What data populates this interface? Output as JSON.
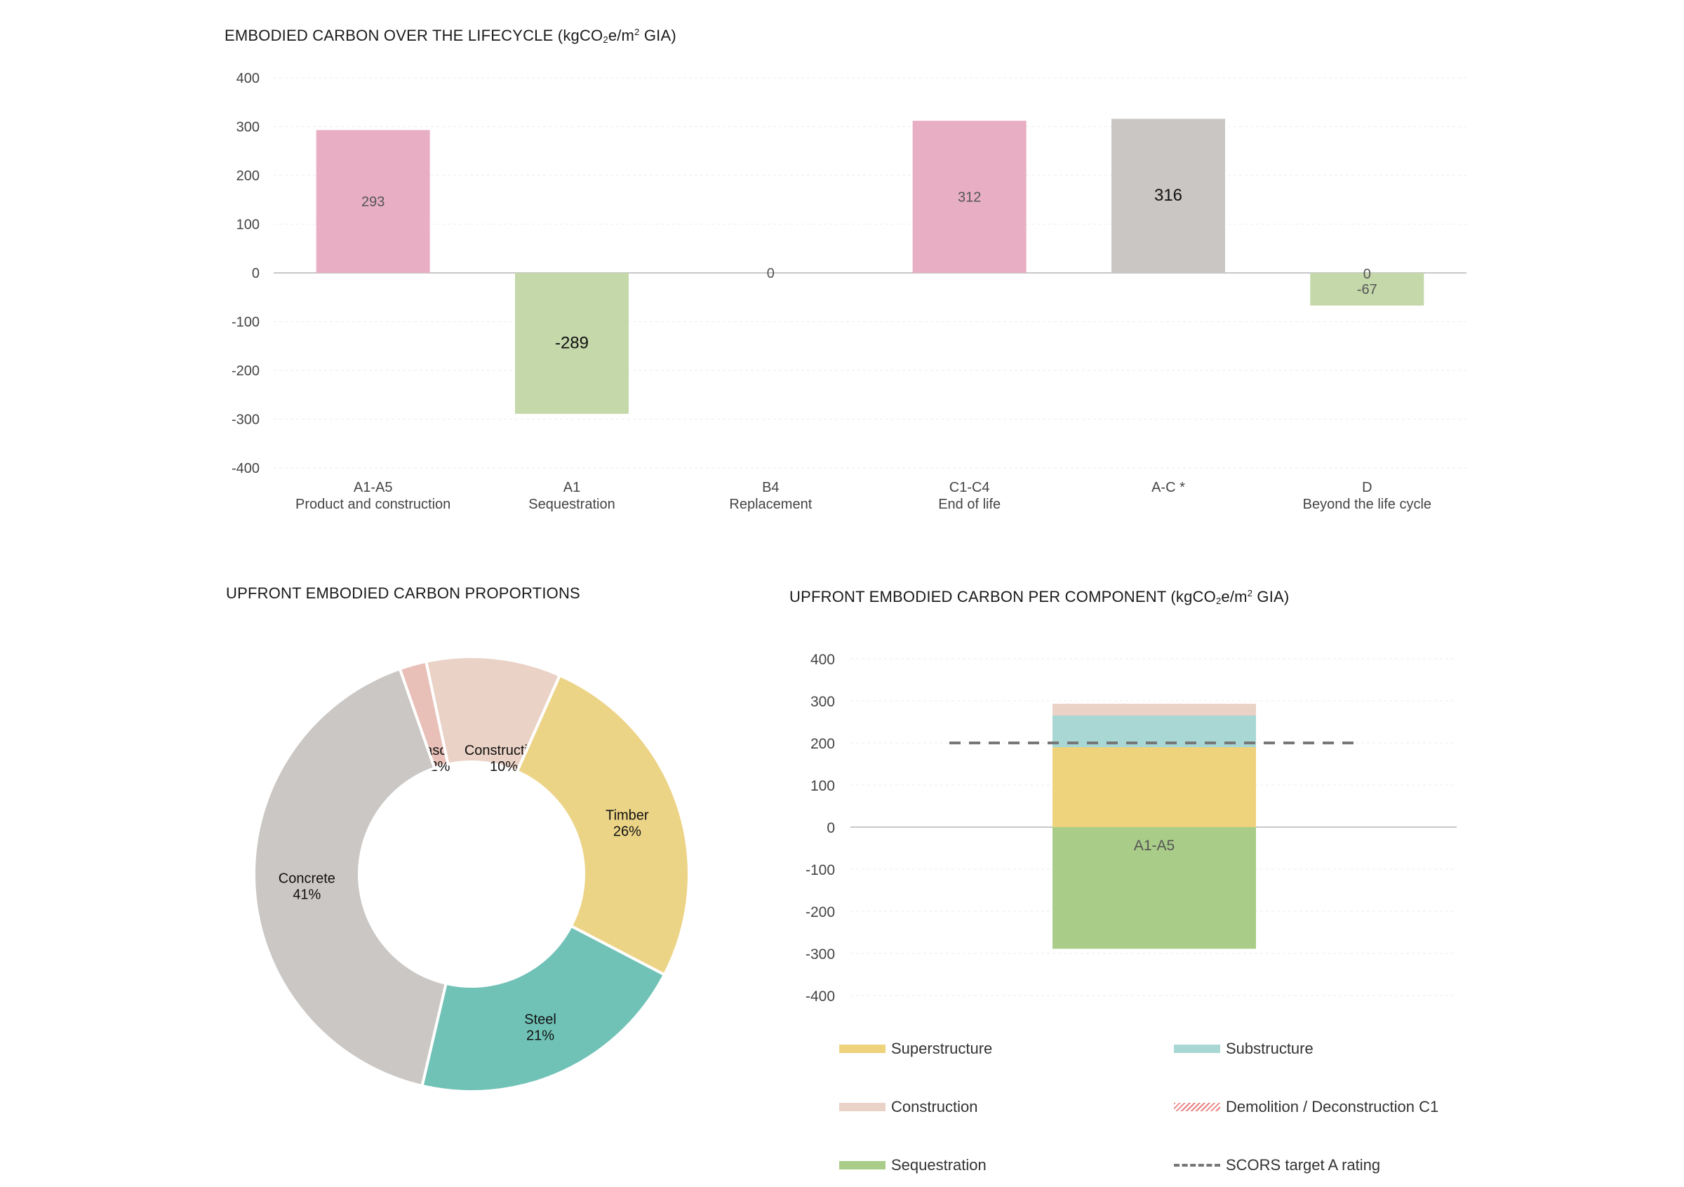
{
  "titles": {
    "lifecycle": {
      "pre": "EMBODIED CARBON OVER THE LIFECYCLE (kgCO",
      "sub": "2",
      "mid": "e/m",
      "sup": "2",
      "post": " GIA)"
    },
    "proportions": "UPFRONT EMBODIED CARBON PROPORTIONS",
    "component": {
      "pre": "UPFRONT EMBODIED CARBON PER COMPONENT (kgCO",
      "sub": "2",
      "mid": "e/m",
      "sup": "2",
      "post": " GIA)"
    }
  },
  "chart_data": [
    {
      "type": "bar",
      "title": "EMBODIED CARBON OVER THE LIFECYCLE (kgCO2e/m2 GIA)",
      "categories": [
        [
          "A1-A5",
          "Product and construction"
        ],
        [
          "A1",
          "Sequestration"
        ],
        [
          "B4",
          "Replacement"
        ],
        [
          "C1-C4",
          "End of life"
        ],
        [
          "A-C *",
          ""
        ],
        [
          "D",
          "Beyond the life cycle"
        ]
      ],
      "values": [
        293,
        -289,
        0,
        312,
        316,
        -67
      ],
      "data_labels": [
        [
          "293"
        ],
        [
          "-289"
        ],
        [
          "0"
        ],
        [
          "312"
        ],
        [
          "316"
        ],
        [
          "0",
          "-67"
        ]
      ],
      "colors": [
        "#e8aec3",
        "#c5d8aa",
        "#e8aec3",
        "#e8aec3",
        "#c9c6c3",
        "#c5d8aa"
      ],
      "yticks": [
        400,
        300,
        200,
        100,
        0,
        -100,
        -200,
        -300,
        -400
      ],
      "ylim": [
        -400,
        400
      ],
      "grid": true
    },
    {
      "type": "pie",
      "title": "UPFRONT EMBODIED CARBON PROPORTIONS",
      "donut": true,
      "slices": [
        {
          "name": "Masonry",
          "value": 2,
          "label": "2%",
          "color": "#e8c0b8"
        },
        {
          "name": "Construction",
          "value": 10,
          "label": "10%",
          "color": "#ead2c6"
        },
        {
          "name": "Timber",
          "value": 26,
          "label": "26%",
          "color": "#ecd487"
        },
        {
          "name": "Steel",
          "value": 21,
          "label": "21%",
          "color": "#70c2b6"
        },
        {
          "name": "Concrete",
          "value": 41,
          "label": "41%",
          "color": "#cac7c4"
        }
      ]
    },
    {
      "type": "bar",
      "stacked": true,
      "title": "UPFRONT EMBODIED CARBON PER COMPONENT (kgCO2e/m2 GIA)",
      "categories": [
        "A1-A5"
      ],
      "series": [
        {
          "name": "Superstructure",
          "values": [
            190
          ],
          "color": "#eed27c"
        },
        {
          "name": "Substructure",
          "values": [
            75
          ],
          "color": "#a8d7d4"
        },
        {
          "name": "Construction",
          "values": [
            28
          ],
          "color": "#ead2c6"
        },
        {
          "name": "Sequestration",
          "values": [
            -289
          ],
          "color": "#a9cd88"
        }
      ],
      "target_line": {
        "name": "SCORS target A rating",
        "value": 200,
        "color": "#777777"
      },
      "yticks": [
        400,
        300,
        200,
        100,
        0,
        -100,
        -200,
        -300,
        -400
      ],
      "ylim": [
        -400,
        400
      ],
      "grid": true
    }
  ],
  "legend": [
    {
      "label": "Superstructure",
      "color": "#eed27c",
      "style": "solid"
    },
    {
      "label": "Substructure",
      "color": "#a8d7d4",
      "style": "solid"
    },
    {
      "label": "Construction",
      "color": "#ead2c6",
      "style": "solid"
    },
    {
      "label": "Demolition / Deconstruction C1",
      "color": "#e88080",
      "style": "hatch"
    },
    {
      "label": "Sequestration",
      "color": "#a9cd88",
      "style": "solid"
    },
    {
      "label": "SCORS target A rating",
      "color": "#777777",
      "style": "dash"
    }
  ]
}
